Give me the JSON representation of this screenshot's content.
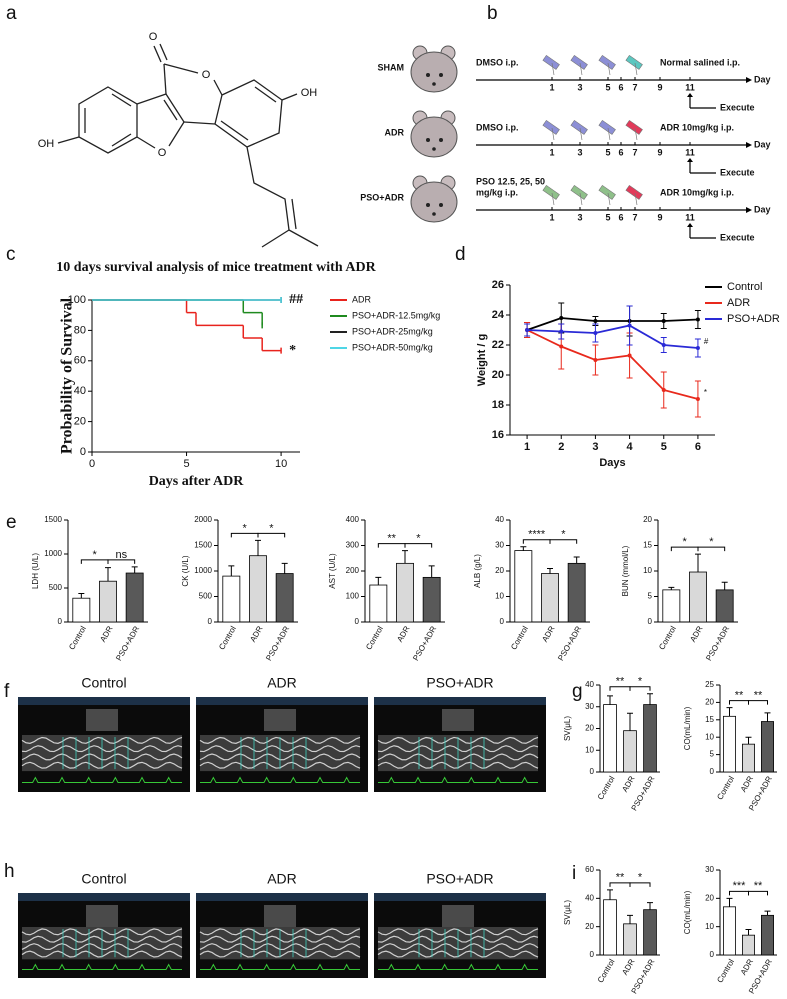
{
  "panels": [
    "a",
    "b",
    "c",
    "d",
    "e",
    "f",
    "g",
    "h",
    "i"
  ],
  "structure": {
    "labels": [
      "O",
      "O",
      "OH",
      "OH",
      "O"
    ]
  },
  "scheme": {
    "day_label": "Day",
    "execute": "Execute",
    "days": [
      "1",
      "3",
      "5",
      "6",
      "7",
      "9",
      "11"
    ],
    "groups": [
      {
        "name": "SHAM",
        "pretreatment": [
          "DMSO i.p."
        ],
        "treatment": "Normal salined i.p."
      },
      {
        "name": "ADR",
        "pretreatment": [
          "DMSO i.p."
        ],
        "treatment": "ADR 10mg/kg i.p."
      },
      {
        "name": "PSO+ADR",
        "pretreatment": [
          "PSO 12.5, 25, 50",
          "mg/kg i.p."
        ],
        "treatment": "ADR 10mg/kg i.p."
      }
    ]
  },
  "echo": {
    "f": [
      "Control",
      "ADR",
      "PSO+ADR"
    ],
    "h": [
      "Control",
      "ADR",
      "PSO+ADR"
    ]
  },
  "chart_data": [
    {
      "type": "step",
      "title": "10 days survival analysis of mice treatment with ADR",
      "xlabel": "Days after ADR",
      "ylabel": "Probability of Survival",
      "xlim": [
        0,
        11
      ],
      "xticks": [
        0,
        5,
        10
      ],
      "ylim": [
        0,
        100
      ],
      "yticks": [
        0,
        20,
        40,
        60,
        80,
        100
      ],
      "series": [
        {
          "name": "ADR",
          "color": "#e8231d",
          "x": [
            0,
            5,
            5.5,
            8,
            9,
            10
          ],
          "values": [
            100,
            91.7,
            83.3,
            75,
            66.7,
            66.7
          ],
          "annotation": "*"
        },
        {
          "name": "PSO+ADR-12.5mg/kg",
          "color": "#1f8a1f",
          "x": [
            0,
            8,
            9
          ],
          "values": [
            100,
            91.7,
            83.3
          ]
        },
        {
          "name": "PSO+ADR-25mg/kg",
          "color": "#222222",
          "x": [
            0,
            10
          ],
          "values": [
            100,
            100
          ]
        },
        {
          "name": "PSO+ADR-50mg/kg",
          "color": "#4fd6e6",
          "x": [
            0,
            10
          ],
          "values": [
            100,
            100
          ],
          "annotation": "##"
        }
      ]
    },
    {
      "type": "line",
      "xlabel": "Days",
      "ylabel": "Weight / g",
      "x": [
        1,
        2,
        3,
        4,
        5,
        6
      ],
      "xlim": [
        0.5,
        6.5
      ],
      "xticks": [
        1,
        2,
        3,
        4,
        5,
        6
      ],
      "ylim": [
        16,
        26
      ],
      "yticks": [
        16,
        18,
        20,
        22,
        24,
        26
      ],
      "series": [
        {
          "name": "Control",
          "color": "#000000",
          "values": [
            23,
            23.8,
            23.6,
            23.6,
            23.6,
            23.7
          ],
          "errors": [
            0.5,
            1,
            0.3,
            1,
            0.5,
            0.6
          ]
        },
        {
          "name": "ADR",
          "color": "#e8291c",
          "values": [
            23,
            21.9,
            21,
            21.3,
            19,
            18.4
          ],
          "errors": [
            0.5,
            1.5,
            1,
            1.5,
            1.2,
            1.2
          ],
          "annotation": "*"
        },
        {
          "name": "PSO+ADR",
          "color": "#2a2ad6",
          "values": [
            23,
            22.9,
            22.8,
            23.3,
            22,
            21.8
          ],
          "errors": [
            0.4,
            0.5,
            0.6,
            1.3,
            0.5,
            0.6
          ],
          "annotation": "#"
        }
      ]
    },
    {
      "type": "bar",
      "ylabel": "LDH (U/L)",
      "categories": [
        "Control",
        "ADR",
        "PSO+ADR"
      ],
      "values": [
        350,
        600,
        720
      ],
      "errors": [
        70,
        200,
        90
      ],
      "colors": [
        "#ffffff",
        "#d9d9d9",
        "#595959"
      ],
      "ylim": [
        0,
        1500
      ],
      "yticks": [
        0,
        500,
        1000,
        1500
      ],
      "significance": [
        "*",
        "ns"
      ]
    },
    {
      "type": "bar",
      "ylabel": "CK (U/L)",
      "categories": [
        "Control",
        "ADR",
        "PSO+ADR"
      ],
      "values": [
        900,
        1300,
        950
      ],
      "errors": [
        200,
        300,
        200
      ],
      "colors": [
        "#ffffff",
        "#d9d9d9",
        "#595959"
      ],
      "ylim": [
        0,
        2000
      ],
      "yticks": [
        0,
        500,
        1000,
        1500,
        2000
      ],
      "significance": [
        "*",
        "*"
      ]
    },
    {
      "type": "bar",
      "ylabel": "AST (U/L)",
      "categories": [
        "Control",
        "ADR",
        "PSO+ADR"
      ],
      "values": [
        145,
        230,
        175
      ],
      "errors": [
        30,
        50,
        45
      ],
      "colors": [
        "#ffffff",
        "#d9d9d9",
        "#595959"
      ],
      "ylim": [
        0,
        400
      ],
      "yticks": [
        0,
        100,
        200,
        300,
        400
      ],
      "significance": [
        "**",
        "*"
      ]
    },
    {
      "type": "bar",
      "ylabel": "ALB (g/L)",
      "categories": [
        "Control",
        "ADR",
        "PSO+ADR"
      ],
      "values": [
        28,
        19,
        23
      ],
      "errors": [
        1.5,
        2,
        2.5
      ],
      "colors": [
        "#ffffff",
        "#d9d9d9",
        "#595959"
      ],
      "ylim": [
        0,
        40
      ],
      "yticks": [
        0,
        10,
        20,
        30,
        40
      ],
      "significance": [
        "****",
        "*"
      ]
    },
    {
      "type": "bar",
      "ylabel": "BUN (mmol/L)",
      "categories": [
        "Control",
        "ADR",
        "PSO+ADR"
      ],
      "values": [
        6.3,
        9.8,
        6.3
      ],
      "errors": [
        0.5,
        3.5,
        1.5
      ],
      "colors": [
        "#ffffff",
        "#d9d9d9",
        "#595959"
      ],
      "ylim": [
        0,
        20
      ],
      "yticks": [
        0,
        5,
        10,
        15,
        20
      ],
      "significance": [
        "*",
        "*"
      ]
    },
    {
      "type": "bar",
      "ylabel": "SV(μL)",
      "categories": [
        "Control",
        "ADR",
        "PSO+ADR"
      ],
      "values": [
        31,
        19,
        31
      ],
      "errors": [
        4,
        8,
        5
      ],
      "colors": [
        "#ffffff",
        "#d9d9d9",
        "#595959"
      ],
      "ylim": [
        0,
        40
      ],
      "yticks": [
        0,
        10,
        20,
        30,
        40
      ],
      "significance": [
        "**",
        "*"
      ]
    },
    {
      "type": "bar",
      "ylabel": "CO(mL/min)",
      "categories": [
        "Control",
        "ADR",
        "PSO+ADR"
      ],
      "values": [
        16,
        8,
        14.5
      ],
      "errors": [
        2.5,
        2,
        2.5
      ],
      "colors": [
        "#ffffff",
        "#d9d9d9",
        "#595959"
      ],
      "ylim": [
        0,
        25
      ],
      "yticks": [
        0,
        5,
        10,
        15,
        20,
        25
      ],
      "significance": [
        "**",
        "**"
      ]
    },
    {
      "type": "bar",
      "ylabel": "SV(μL)",
      "categories": [
        "Control",
        "ADR",
        "PSO+ADR"
      ],
      "values": [
        39,
        22,
        32
      ],
      "errors": [
        7,
        6,
        5
      ],
      "colors": [
        "#ffffff",
        "#d9d9d9",
        "#595959"
      ],
      "ylim": [
        0,
        60
      ],
      "yticks": [
        0,
        20,
        40,
        60
      ],
      "significance": [
        "**",
        "*"
      ]
    },
    {
      "type": "bar",
      "ylabel": "CO(mL/min)",
      "categories": [
        "Control",
        "ADR",
        "PSO+ADR"
      ],
      "values": [
        17,
        7,
        14
      ],
      "errors": [
        3,
        2,
        1.5
      ],
      "colors": [
        "#ffffff",
        "#d9d9d9",
        "#595959"
      ],
      "ylim": [
        0,
        30
      ],
      "yticks": [
        0,
        10,
        20,
        30
      ],
      "significance": [
        "***",
        "**"
      ]
    }
  ]
}
